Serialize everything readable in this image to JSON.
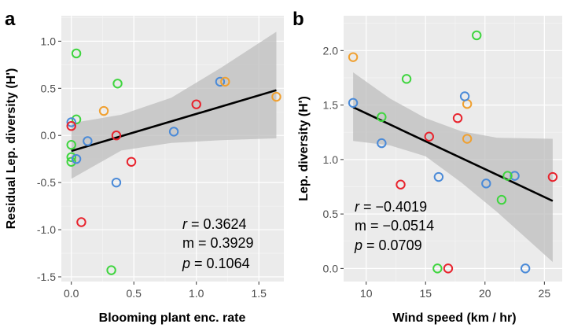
{
  "chart_data": [
    {
      "type": "scatter",
      "panel_letter": "a",
      "title": "",
      "xlabel": "Blooming plant enc. rate",
      "ylabel": "Residual Lep. diversity (H')",
      "xlim": [
        -0.08,
        1.7
      ],
      "ylim": [
        -1.55,
        1.27
      ],
      "xticks": [
        0.0,
        0.5,
        1.0,
        1.5
      ],
      "xtick_labels": [
        "0.0",
        "0.5",
        "1.0",
        "1.5"
      ],
      "yticks": [
        -1.5,
        -1.0,
        -0.5,
        0.0,
        0.5,
        1.0
      ],
      "ytick_labels": [
        "-1.5",
        "-1.0",
        "-0.5",
        "0.0",
        "0.5",
        "1.0"
      ],
      "grid": true,
      "points": [
        {
          "x": 0.04,
          "y": 0.87,
          "color": "green"
        },
        {
          "x": 0.37,
          "y": 0.55,
          "color": "green"
        },
        {
          "x": 0.04,
          "y": 0.17,
          "color": "green"
        },
        {
          "x": 0.0,
          "y": -0.1,
          "color": "green"
        },
        {
          "x": 0.0,
          "y": -0.23,
          "color": "green"
        },
        {
          "x": 0.0,
          "y": -0.28,
          "color": "green"
        },
        {
          "x": 0.32,
          "y": -1.43,
          "color": "green"
        },
        {
          "x": 0.0,
          "y": 0.14,
          "color": "blue"
        },
        {
          "x": 0.04,
          "y": -0.25,
          "color": "blue"
        },
        {
          "x": 0.13,
          "y": -0.06,
          "color": "blue"
        },
        {
          "x": 0.82,
          "y": 0.04,
          "color": "blue"
        },
        {
          "x": 0.36,
          "y": -0.5,
          "color": "blue"
        },
        {
          "x": 1.19,
          "y": 0.57,
          "color": "blue"
        },
        {
          "x": 0.0,
          "y": 0.1,
          "color": "red"
        },
        {
          "x": 0.36,
          "y": 0.0,
          "color": "red"
        },
        {
          "x": 0.48,
          "y": -0.28,
          "color": "red"
        },
        {
          "x": 1.0,
          "y": 0.33,
          "color": "red"
        },
        {
          "x": 0.08,
          "y": -0.92,
          "color": "red"
        },
        {
          "x": 0.26,
          "y": 0.26,
          "color": "orange"
        },
        {
          "x": 1.23,
          "y": 0.57,
          "color": "orange"
        },
        {
          "x": 1.64,
          "y": 0.41,
          "color": "orange"
        }
      ],
      "fit": {
        "x": [
          0.0,
          1.64
        ],
        "y": [
          -0.165,
          0.48
        ]
      },
      "ci": {
        "x": [
          0.0,
          0.4,
          0.8,
          1.2,
          1.64
        ],
        "lower": [
          -0.46,
          -0.16,
          -0.08,
          -0.05,
          -0.03
        ],
        "upper": [
          0.13,
          0.22,
          0.4,
          0.72,
          1.1
        ]
      },
      "stats": {
        "r_label": "r",
        "r_value": " = 0.3624",
        "m_line": "m = 0.3929",
        "p_label": "p",
        "p_value": " = 0.1064"
      }
    },
    {
      "type": "scatter",
      "panel_letter": "b",
      "title": "",
      "xlabel": "Wind speed (km / hr)",
      "ylabel": "Lep. diversity (H')",
      "xlim": [
        8.1,
        26.5
      ],
      "ylim": [
        -0.12,
        2.32
      ],
      "xticks": [
        10,
        15,
        20,
        25
      ],
      "xtick_labels": [
        "10",
        "15",
        "20",
        "25"
      ],
      "yticks": [
        0.0,
        0.5,
        1.0,
        1.5,
        2.0
      ],
      "ytick_labels": [
        "0.0",
        "0.5",
        "1.0",
        "1.5",
        "2.0"
      ],
      "grid": true,
      "points": [
        {
          "x": 8.9,
          "y": 1.94,
          "color": "orange"
        },
        {
          "x": 18.5,
          "y": 1.51,
          "color": "orange"
        },
        {
          "x": 18.5,
          "y": 1.19,
          "color": "orange"
        },
        {
          "x": 8.9,
          "y": 1.52,
          "color": "blue"
        },
        {
          "x": 18.3,
          "y": 1.58,
          "color": "blue"
        },
        {
          "x": 11.3,
          "y": 1.15,
          "color": "blue"
        },
        {
          "x": 16.1,
          "y": 0.84,
          "color": "blue"
        },
        {
          "x": 20.1,
          "y": 0.78,
          "color": "blue"
        },
        {
          "x": 22.5,
          "y": 0.85,
          "color": "blue"
        },
        {
          "x": 23.4,
          "y": 0.0,
          "color": "blue"
        },
        {
          "x": 13.4,
          "y": 1.74,
          "color": "green"
        },
        {
          "x": 11.3,
          "y": 1.39,
          "color": "green"
        },
        {
          "x": 19.3,
          "y": 2.14,
          "color": "green"
        },
        {
          "x": 21.9,
          "y": 0.85,
          "color": "green"
        },
        {
          "x": 21.4,
          "y": 0.63,
          "color": "green"
        },
        {
          "x": 16.0,
          "y": 0.0,
          "color": "green"
        },
        {
          "x": 17.7,
          "y": 1.38,
          "color": "red"
        },
        {
          "x": 15.3,
          "y": 1.21,
          "color": "red"
        },
        {
          "x": 12.9,
          "y": 0.77,
          "color": "red"
        },
        {
          "x": 16.9,
          "y": 0.0,
          "color": "red"
        },
        {
          "x": 25.7,
          "y": 0.84,
          "color": "red"
        }
      ],
      "fit": {
        "x": [
          8.9,
          25.7
        ],
        "y": [
          1.48,
          0.62
        ]
      },
      "ci": {
        "x": [
          8.9,
          12.0,
          15.0,
          18.0,
          21.0,
          25.7
        ],
        "lower": [
          1.17,
          1.13,
          1.03,
          0.79,
          0.52,
          0.06
        ],
        "upper": [
          1.8,
          1.56,
          1.38,
          1.26,
          1.2,
          1.19
        ]
      },
      "stats": {
        "r_label": "r",
        "r_value": " = −0.4019",
        "m_line": "m = −0.0514",
        "p_label": "p",
        "p_value": " = 0.0709"
      }
    }
  ],
  "colors": {
    "red": "#e8232d",
    "green": "#3fd53f",
    "blue": "#4a8ad8",
    "orange": "#f0a030"
  }
}
